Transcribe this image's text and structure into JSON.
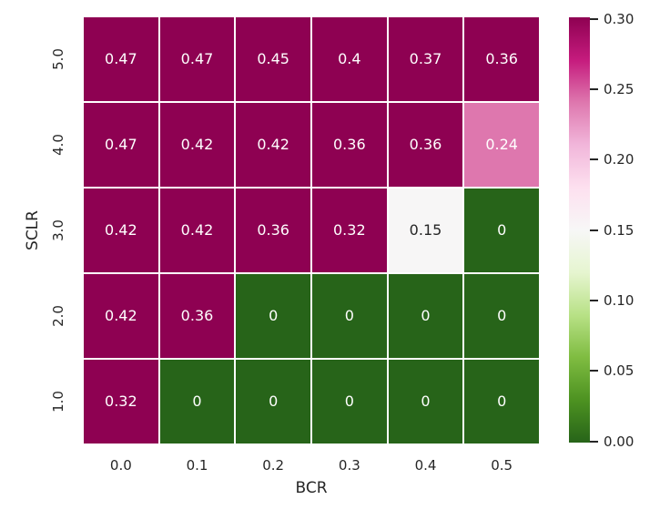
{
  "figure": {
    "background": "#ffffff",
    "text_color": "#262626"
  },
  "chart_data": {
    "type": "heatmap",
    "title": "",
    "xlabel": "BCR",
    "ylabel": "SCLR",
    "x_ticklabels": [
      "0.0",
      "0.1",
      "0.2",
      "0.3",
      "0.4",
      "0.5"
    ],
    "y_ticklabels": [
      "5.0",
      "4.0",
      "3.0",
      "2.0",
      "1.0"
    ],
    "values": [
      [
        0.47,
        0.47,
        0.45,
        0.4,
        0.37,
        0.36
      ],
      [
        0.47,
        0.42,
        0.42,
        0.36,
        0.36,
        0.24
      ],
      [
        0.42,
        0.42,
        0.36,
        0.32,
        0.15,
        0
      ],
      [
        0.42,
        0.36,
        0,
        0,
        0,
        0
      ],
      [
        0.32,
        0,
        0,
        0,
        0,
        0
      ]
    ],
    "cell_labels": [
      [
        "0.47",
        "0.47",
        "0.45",
        "0.4",
        "0.37",
        "0.36"
      ],
      [
        "0.47",
        "0.42",
        "0.42",
        "0.36",
        "0.36",
        "0.24"
      ],
      [
        "0.42",
        "0.42",
        "0.36",
        "0.32",
        "0.15",
        "0"
      ],
      [
        "0.42",
        "0.36",
        "0",
        "0",
        "0",
        "0"
      ],
      [
        "0.32",
        "0",
        "0",
        "0",
        "0",
        "0"
      ]
    ],
    "cell_colors": [
      [
        "#8e0152",
        "#8e0152",
        "#8e0152",
        "#8e0152",
        "#8e0152",
        "#8e0152"
      ],
      [
        "#8e0152",
        "#8e0152",
        "#8e0152",
        "#8e0152",
        "#8e0152",
        "#de77ae"
      ],
      [
        "#8e0152",
        "#8e0152",
        "#8e0152",
        "#8e0152",
        "#f7f6f6",
        "#276419"
      ],
      [
        "#8e0152",
        "#8e0152",
        "#276419",
        "#276419",
        "#276419",
        "#276419"
      ],
      [
        "#8e0152",
        "#276419",
        "#276419",
        "#276419",
        "#276419",
        "#276419"
      ]
    ],
    "cell_text_colors": [
      [
        "#ffffff",
        "#ffffff",
        "#ffffff",
        "#ffffff",
        "#ffffff",
        "#ffffff"
      ],
      [
        "#ffffff",
        "#ffffff",
        "#ffffff",
        "#ffffff",
        "#ffffff",
        "#ffffff"
      ],
      [
        "#ffffff",
        "#ffffff",
        "#ffffff",
        "#ffffff",
        "#262626",
        "#ffffff"
      ],
      [
        "#ffffff",
        "#ffffff",
        "#ffffff",
        "#ffffff",
        "#ffffff",
        "#ffffff"
      ],
      [
        "#ffffff",
        "#ffffff",
        "#ffffff",
        "#ffffff",
        "#ffffff",
        "#ffffff"
      ]
    ],
    "colormap": "PiYG_r",
    "vmin": 0.0,
    "vmax": 0.3,
    "grid_line_color": "#ffffff",
    "legend_position": "right",
    "colorbar": {
      "tick_labels": [
        "0.30",
        "0.25",
        "0.20",
        "0.15",
        "0.10",
        "0.05",
        "0.00"
      ],
      "gradient_top_to_bottom": [
        "#8e0152",
        "#c51b7d",
        "#de77ae",
        "#f1b6da",
        "#fde0ef",
        "#f7f7f7",
        "#e6f5d0",
        "#b8e186",
        "#7fbc41",
        "#4d9221",
        "#276419"
      ]
    }
  }
}
